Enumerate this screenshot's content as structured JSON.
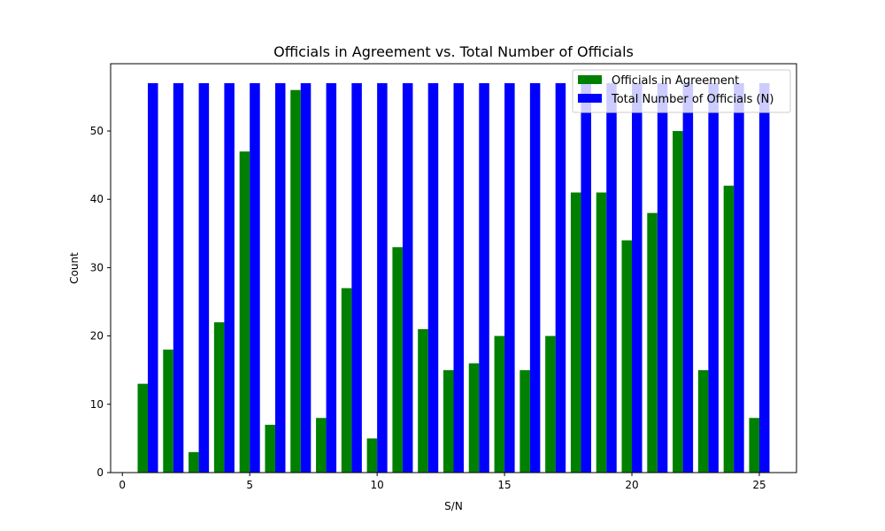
{
  "chart_data": {
    "type": "bar",
    "title": "Officials in Agreement vs. Total Number of Officials",
    "xlabel": "S/N",
    "ylabel": "Count",
    "x": [
      1,
      2,
      3,
      4,
      5,
      6,
      7,
      8,
      9,
      10,
      11,
      12,
      13,
      14,
      15,
      16,
      17,
      18,
      19,
      20,
      21,
      22,
      23,
      24,
      25
    ],
    "series": [
      {
        "name": "Officials in Agreement",
        "color": "#008000",
        "values": [
          13,
          18,
          3,
          22,
          47,
          7,
          56,
          8,
          27,
          5,
          33,
          21,
          15,
          16,
          20,
          15,
          20,
          41,
          41,
          34,
          38,
          50,
          15,
          42,
          8
        ]
      },
      {
        "name": "Total Number of Officials (N)",
        "color": "#0000ff",
        "values": [
          57,
          57,
          57,
          57,
          57,
          57,
          57,
          57,
          57,
          57,
          57,
          57,
          57,
          57,
          57,
          57,
          57,
          57,
          57,
          57,
          57,
          57,
          57,
          57,
          57
        ]
      }
    ],
    "xlim": [
      -0.46,
      26.46
    ],
    "ylim": [
      0,
      59.85
    ],
    "xticks": [
      0,
      5,
      10,
      15,
      20,
      25
    ],
    "yticks": [
      0,
      10,
      20,
      30,
      40,
      50
    ],
    "legend": "top-right",
    "grid": false
  }
}
